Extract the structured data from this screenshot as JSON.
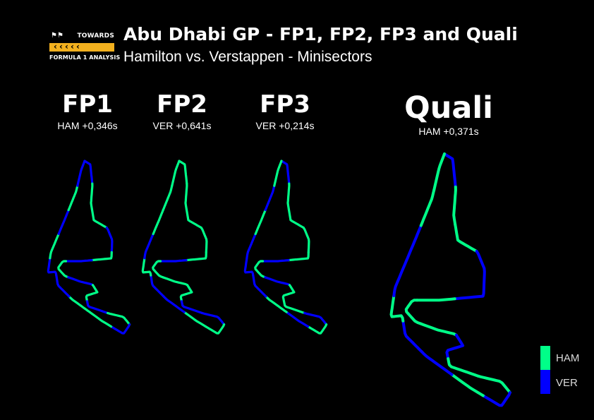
{
  "header": {
    "title": "Abu Dhabi GP - FP1, FP2, FP3 and Quali",
    "subtitle": "Hamilton vs. Verstappen - Minisectors"
  },
  "logo": {
    "top_text": "TOWARDS",
    "bottom_text": "FORMULA 1 ANALYSIS",
    "accent": "#f2b01e"
  },
  "colors": {
    "HAM": "#00ff88",
    "VER": "#0000ff"
  },
  "chart_data": {
    "type": "track-map",
    "series": [
      {
        "name": "HAM",
        "color": "#00ff88"
      },
      {
        "name": "VER",
        "color": "#0000ff"
      }
    ],
    "sessions": [
      {
        "label": "FP1",
        "gap": "HAM +0,346s",
        "faster": "HAM",
        "minisectors": [
          "VER",
          "HAM",
          "HAM",
          "VER",
          "HAM",
          "VER",
          "HAM",
          "VER",
          "HAM",
          "VER",
          "HAM",
          "VER",
          "HAM",
          "HAM",
          "VER",
          "VER",
          "HAM",
          "VER",
          "HAM",
          "VER"
        ]
      },
      {
        "label": "FP2",
        "gap": "VER +0,641s",
        "faster": "VER",
        "minisectors": [
          "HAM",
          "HAM",
          "HAM",
          "HAM",
          "HAM",
          "VER",
          "HAM",
          "HAM",
          "HAM",
          "VER",
          "VER",
          "HAM",
          "HAM",
          "VER",
          "VER",
          "HAM",
          "VER",
          "HAM",
          "HAM",
          "HAM"
        ]
      },
      {
        "label": "FP3",
        "gap": "VER +0,214s",
        "faster": "VER",
        "minisectors": [
          "VER",
          "HAM",
          "HAM",
          "HAM",
          "HAM",
          "VER",
          "HAM",
          "VER",
          "HAM",
          "HAM",
          "VER",
          "HAM",
          "VER",
          "HAM",
          "VER",
          "VER",
          "VER",
          "HAM",
          "VER",
          "HAM"
        ]
      },
      {
        "label": "Quali",
        "gap": "HAM +0,371s",
        "faster": "HAM",
        "minisectors": [
          "VER",
          "HAM",
          "HAM",
          "VER",
          "VER",
          "HAM",
          "HAM",
          "HAM",
          "VER",
          "HAM",
          "HAM",
          "VER",
          "HAM",
          "VER",
          "VER",
          "HAM",
          "VER",
          "VER",
          "HAM",
          "HAM"
        ]
      }
    ]
  }
}
